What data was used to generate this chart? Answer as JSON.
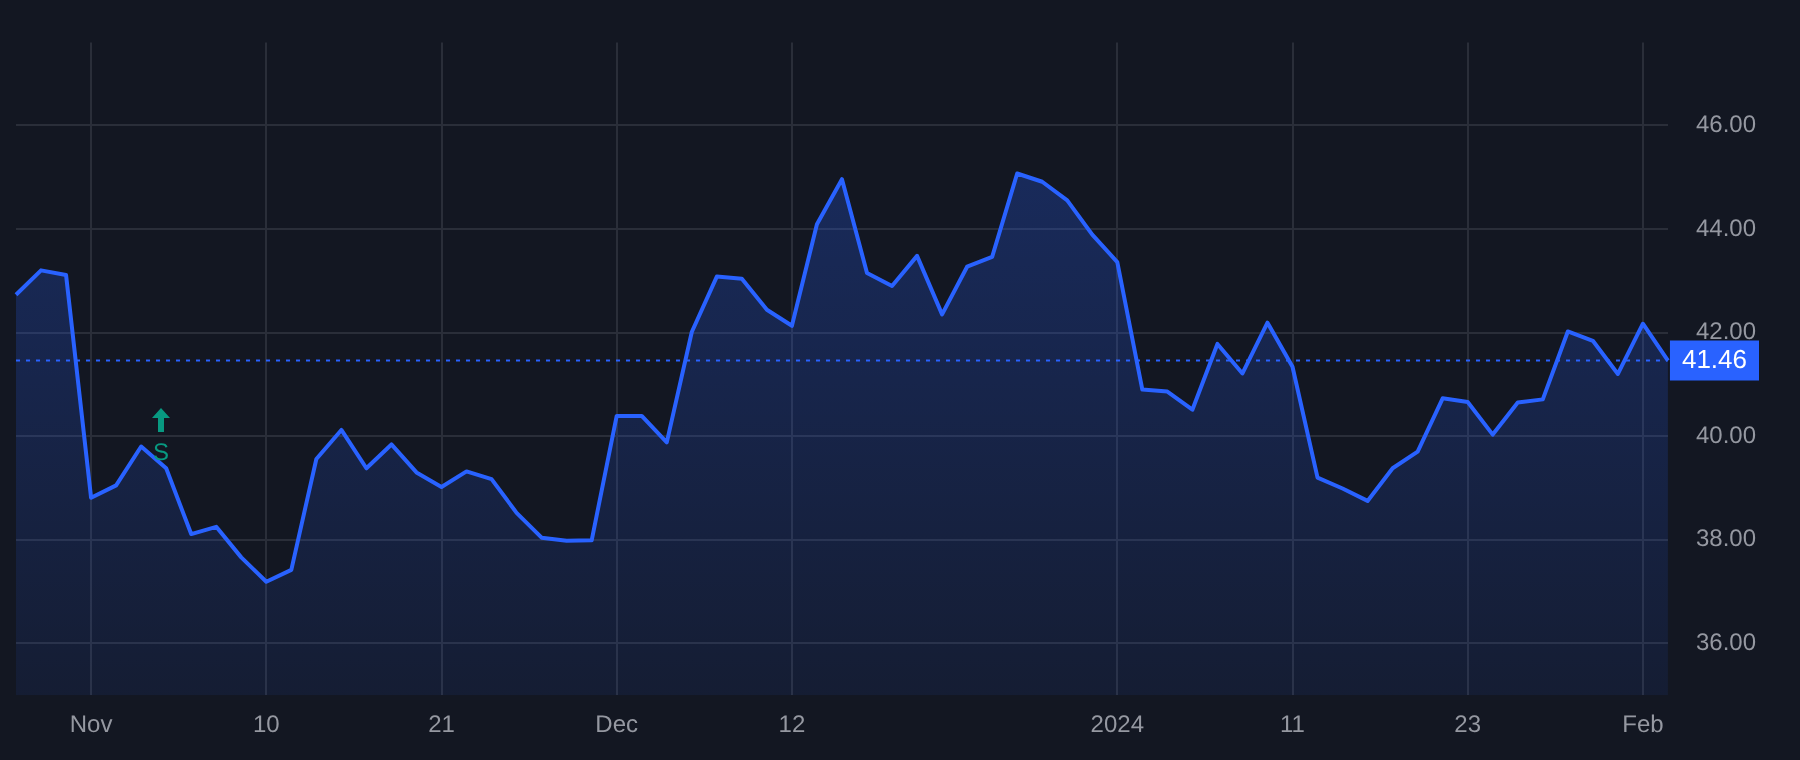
{
  "chart_data": {
    "type": "area",
    "categories": [
      null,
      null,
      null,
      "Nov",
      null,
      null,
      null,
      null,
      null,
      null,
      "10",
      null,
      null,
      null,
      null,
      null,
      null,
      "21",
      null,
      null,
      null,
      null,
      null,
      null,
      "Dec",
      null,
      null,
      null,
      null,
      null,
      null,
      "12",
      null,
      null,
      null,
      null,
      null,
      null,
      null,
      null,
      null,
      null,
      null,
      null,
      "2024",
      null,
      null,
      null,
      null,
      null,
      null,
      "11",
      null,
      null,
      null,
      null,
      null,
      null,
      "23",
      null,
      null,
      null,
      null,
      null,
      null,
      "Feb",
      null
    ],
    "series": [
      {
        "color": "#2962ff",
        "values": [
          42.73,
          43.2,
          43.11,
          38.81,
          39.05,
          39.8,
          39.38,
          38.11,
          38.25,
          37.66,
          37.19,
          37.42,
          39.56,
          40.12,
          39.38,
          39.84,
          39.3,
          39.02,
          39.32,
          39.17,
          38.52,
          38.04,
          37.98,
          37.99,
          40.39,
          40.39,
          39.88,
          42.01,
          43.08,
          43.04,
          42.44,
          42.13,
          44.09,
          44.96,
          43.15,
          42.9,
          43.48,
          42.35,
          43.27,
          43.46,
          45.07,
          44.91,
          44.55,
          43.89,
          43.36,
          40.9,
          40.86,
          40.51,
          41.78,
          41.21,
          42.19,
          41.34,
          39.2,
          38.99,
          38.75,
          39.38,
          39.7,
          40.73,
          40.66,
          40.03,
          40.65,
          40.71,
          42.02,
          41.84,
          41.2,
          42.17,
          41.46
        ]
      }
    ],
    "ylim": [
      35.0,
      47.6
    ],
    "yticks": [
      {
        "value": 36,
        "label": "36.00"
      },
      {
        "value": 38,
        "label": "38.00"
      },
      {
        "value": 40,
        "label": "40.00"
      },
      {
        "value": 42,
        "label": "42.00"
      },
      {
        "value": 44,
        "label": "44.00"
      },
      {
        "value": 46,
        "label": "46.00"
      }
    ],
    "ref_lines": [
      {
        "axis": "y",
        "value": 41.46,
        "label": "41.46",
        "color": "#2962ff",
        "line_style": "dotted"
      }
    ],
    "annotations": [
      "S"
    ],
    "grid": true,
    "legend": false
  }
}
